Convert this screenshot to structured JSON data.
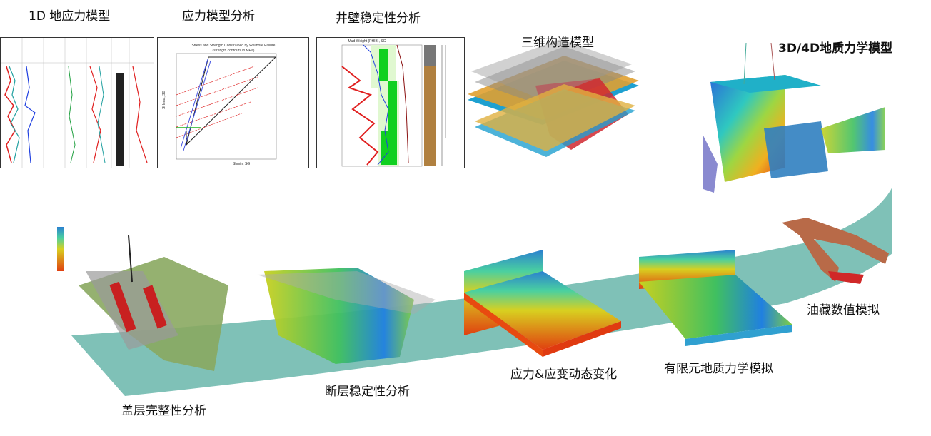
{
  "labels": {
    "one_d": "1D 地应力模型",
    "stress_analysis": "应力模型分析",
    "wellbore": "井壁稳定性分析",
    "structural_3d": "三维构造模型",
    "geomech_3d4d": "3D/4D地质力学模型",
    "reservoir_sim": "油藏数值模拟",
    "fem_sim": "有限元地质力学模拟",
    "stress_strain": "应力&应变动态变化",
    "fault_stability": "断层稳定性分析",
    "caprock": "盖层完整性分析"
  },
  "stress_chart": {
    "title": "Stress and Strength Constrained by Wellbore Failure",
    "subtitle": "(strength contours in MPa)",
    "xlabel": "Shmin, SG",
    "ylabel": "SHmax, SG"
  },
  "wellbore_chart": {
    "xlabel": "Mud Weight (PHIB), SG"
  },
  "colors": {
    "band": "#7fc1b7"
  }
}
